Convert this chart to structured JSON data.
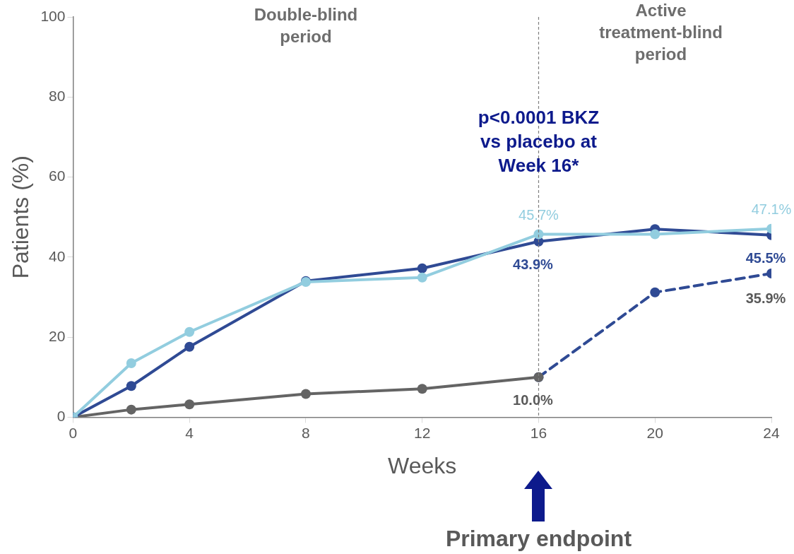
{
  "chart_data": {
    "type": "line",
    "xlabel": "Weeks",
    "ylabel": "Patients (%)",
    "xlim": [
      0,
      24
    ],
    "xticks": [
      0,
      4,
      8,
      12,
      16,
      20,
      24
    ],
    "ylim": [
      0,
      100
    ],
    "yticks": [
      0,
      20,
      40,
      60,
      80,
      100
    ],
    "grid": false,
    "legend": false,
    "marker": "circle",
    "series": [
      {
        "color": "#92cddf",
        "x": [
          0,
          2,
          4,
          8,
          12,
          16,
          20,
          24
        ],
        "values": [
          0,
          13.5,
          21.3,
          33.8,
          34.9,
          45.7,
          45.7,
          47.1
        ],
        "value_labels": [
          null,
          null,
          null,
          null,
          null,
          "45.7%",
          null,
          "47.1%"
        ]
      },
      {
        "color": "#2f4a94",
        "x": [
          0,
          2,
          4,
          8,
          12,
          16,
          20,
          24
        ],
        "values": [
          0,
          7.8,
          17.6,
          34.0,
          37.2,
          43.9,
          47.0,
          45.5
        ],
        "value_labels": [
          null,
          null,
          null,
          null,
          null,
          "43.9%",
          null,
          "45.5%"
        ]
      },
      {
        "color": "#646464",
        "x": [
          0,
          2,
          4,
          8,
          12,
          16
        ],
        "values": [
          0,
          1.9,
          3.2,
          5.8,
          7.1,
          10.0
        ],
        "value_labels": [
          null,
          null,
          null,
          null,
          null,
          "10.0%"
        ]
      },
      {
        "color": "#2f4a94",
        "line_style": "dashed",
        "x": [
          16,
          20,
          24
        ],
        "values": [
          10.0,
          31.2,
          35.9
        ],
        "value_labels": [
          null,
          null,
          "35.9%"
        ]
      }
    ],
    "ref_lines": [
      {
        "axis": "x",
        "value": 16,
        "color": "#7f7f7f",
        "line_style": "dashed"
      }
    ],
    "annotations": [
      "Double-blind period",
      "Active treatment-blind period",
      "p<0.0001 BKZ vs placebo at Week 16*",
      "Primary endpoint"
    ]
  }
}
